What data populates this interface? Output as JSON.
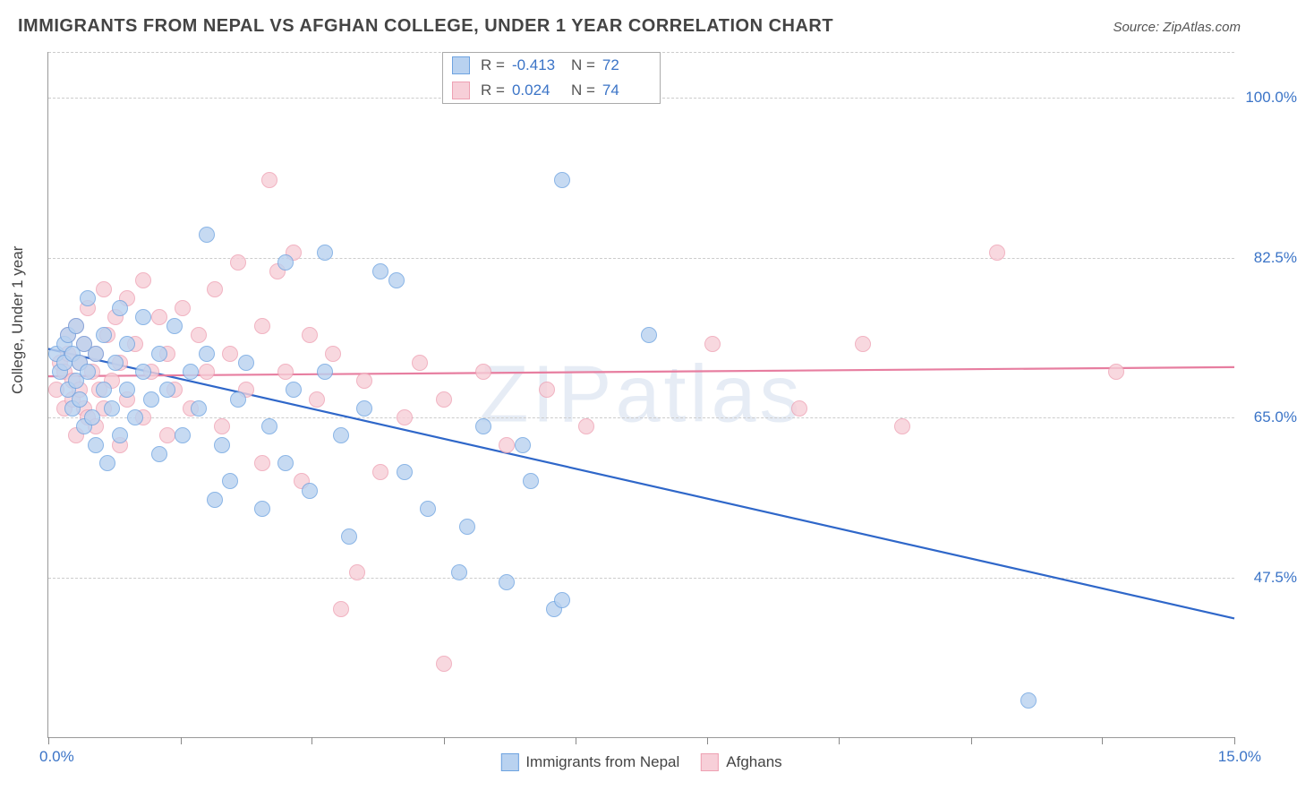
{
  "title": "IMMIGRANTS FROM NEPAL VS AFGHAN COLLEGE, UNDER 1 YEAR CORRELATION CHART",
  "source": "Source: ZipAtlas.com",
  "watermark": "ZIPatlas",
  "chart": {
    "type": "scatter",
    "xlim": [
      0,
      15
    ],
    "ylim": [
      30,
      105
    ],
    "x_tick_positions": [
      0,
      1.67,
      3.33,
      5.0,
      6.67,
      8.33,
      10.0,
      11.67,
      13.33,
      15.0
    ],
    "x_start_label": "0.0%",
    "x_end_label": "15.0%",
    "y_gridlines": [
      47.5,
      65.0,
      82.5,
      100.0,
      105.0
    ],
    "y_tick_labels": [
      "47.5%",
      "65.0%",
      "82.5%",
      "100.0%"
    ],
    "ylabel": "College, Under 1 year",
    "background_color": "#ffffff",
    "grid_color": "#cccccc",
    "axis_color": "#888888",
    "axis_label_color": "#3b74c7",
    "marker_radius": 9,
    "series": [
      {
        "name": "Immigrants from Nepal",
        "fill": "#b9d2f0",
        "stroke": "#6ea3e0",
        "r_value": "-0.413",
        "n_value": "72",
        "trend": {
          "y_at_x0": 72.5,
          "y_at_x15": 43.0,
          "color": "#2f67c9",
          "width": 2.2
        },
        "points": [
          [
            0.1,
            72
          ],
          [
            0.15,
            70
          ],
          [
            0.2,
            71
          ],
          [
            0.2,
            73
          ],
          [
            0.25,
            68
          ],
          [
            0.25,
            74
          ],
          [
            0.3,
            66
          ],
          [
            0.3,
            72
          ],
          [
            0.35,
            69
          ],
          [
            0.35,
            75
          ],
          [
            0.4,
            67
          ],
          [
            0.4,
            71
          ],
          [
            0.45,
            64
          ],
          [
            0.45,
            73
          ],
          [
            0.5,
            70
          ],
          [
            0.5,
            78
          ],
          [
            0.55,
            65
          ],
          [
            0.6,
            62
          ],
          [
            0.6,
            72
          ],
          [
            0.7,
            68
          ],
          [
            0.7,
            74
          ],
          [
            0.75,
            60
          ],
          [
            0.8,
            66
          ],
          [
            0.85,
            71
          ],
          [
            0.9,
            63
          ],
          [
            0.9,
            77
          ],
          [
            1.0,
            68
          ],
          [
            1.0,
            73
          ],
          [
            1.1,
            65
          ],
          [
            1.2,
            70
          ],
          [
            1.2,
            76
          ],
          [
            1.3,
            67
          ],
          [
            1.4,
            61
          ],
          [
            1.4,
            72
          ],
          [
            1.5,
            68
          ],
          [
            1.6,
            75
          ],
          [
            1.7,
            63
          ],
          [
            1.8,
            70
          ],
          [
            1.9,
            66
          ],
          [
            2.0,
            72
          ],
          [
            2.0,
            85
          ],
          [
            2.1,
            56
          ],
          [
            2.2,
            62
          ],
          [
            2.3,
            58
          ],
          [
            2.4,
            67
          ],
          [
            2.5,
            71
          ],
          [
            2.7,
            55
          ],
          [
            2.8,
            64
          ],
          [
            3.0,
            60
          ],
          [
            3.0,
            82
          ],
          [
            3.1,
            68
          ],
          [
            3.3,
            57
          ],
          [
            3.5,
            70
          ],
          [
            3.5,
            83
          ],
          [
            3.7,
            63
          ],
          [
            3.8,
            52
          ],
          [
            4.0,
            66
          ],
          [
            4.2,
            81
          ],
          [
            4.4,
            80
          ],
          [
            4.5,
            59
          ],
          [
            4.8,
            55
          ],
          [
            5.2,
            48
          ],
          [
            5.3,
            53
          ],
          [
            5.5,
            64
          ],
          [
            5.8,
            47
          ],
          [
            6.0,
            62
          ],
          [
            6.1,
            58
          ],
          [
            6.4,
            44
          ],
          [
            6.5,
            91
          ],
          [
            6.5,
            45
          ],
          [
            7.6,
            74
          ],
          [
            12.4,
            34
          ]
        ]
      },
      {
        "name": "Afghans",
        "fill": "#f7cfd8",
        "stroke": "#eea1b3",
        "r_value": "0.024",
        "n_value": "74",
        "trend": {
          "y_at_x0": 69.5,
          "y_at_x15": 70.5,
          "color": "#e77ea0",
          "width": 2.2
        },
        "points": [
          [
            0.1,
            68
          ],
          [
            0.15,
            71
          ],
          [
            0.2,
            70
          ],
          [
            0.2,
            66
          ],
          [
            0.25,
            72
          ],
          [
            0.25,
            74
          ],
          [
            0.3,
            67
          ],
          [
            0.3,
            69
          ],
          [
            0.35,
            75
          ],
          [
            0.35,
            63
          ],
          [
            0.4,
            71
          ],
          [
            0.4,
            68
          ],
          [
            0.45,
            73
          ],
          [
            0.45,
            66
          ],
          [
            0.5,
            77
          ],
          [
            0.5,
            65
          ],
          [
            0.55,
            70
          ],
          [
            0.6,
            72
          ],
          [
            0.6,
            64
          ],
          [
            0.65,
            68
          ],
          [
            0.7,
            79
          ],
          [
            0.7,
            66
          ],
          [
            0.75,
            74
          ],
          [
            0.8,
            69
          ],
          [
            0.85,
            76
          ],
          [
            0.9,
            62
          ],
          [
            0.9,
            71
          ],
          [
            1.0,
            78
          ],
          [
            1.0,
            67
          ],
          [
            1.1,
            73
          ],
          [
            1.2,
            65
          ],
          [
            1.2,
            80
          ],
          [
            1.3,
            70
          ],
          [
            1.4,
            76
          ],
          [
            1.5,
            63
          ],
          [
            1.5,
            72
          ],
          [
            1.6,
            68
          ],
          [
            1.7,
            77
          ],
          [
            1.8,
            66
          ],
          [
            1.9,
            74
          ],
          [
            2.0,
            70
          ],
          [
            2.1,
            79
          ],
          [
            2.2,
            64
          ],
          [
            2.3,
            72
          ],
          [
            2.4,
            82
          ],
          [
            2.5,
            68
          ],
          [
            2.7,
            60
          ],
          [
            2.7,
            75
          ],
          [
            2.8,
            91
          ],
          [
            2.9,
            81
          ],
          [
            3.0,
            70
          ],
          [
            3.1,
            83
          ],
          [
            3.2,
            58
          ],
          [
            3.3,
            74
          ],
          [
            3.4,
            67
          ],
          [
            3.6,
            72
          ],
          [
            3.7,
            44
          ],
          [
            3.9,
            48
          ],
          [
            4.0,
            69
          ],
          [
            4.2,
            59
          ],
          [
            4.5,
            65
          ],
          [
            4.7,
            71
          ],
          [
            5.0,
            38
          ],
          [
            5.0,
            67
          ],
          [
            5.5,
            70
          ],
          [
            5.8,
            62
          ],
          [
            6.3,
            68
          ],
          [
            6.8,
            64
          ],
          [
            8.4,
            73
          ],
          [
            9.5,
            66
          ],
          [
            10.3,
            73
          ],
          [
            10.8,
            64
          ],
          [
            12.0,
            83
          ],
          [
            13.5,
            70
          ]
        ]
      }
    ],
    "bottom_legend": [
      {
        "label": "Immigrants from Nepal",
        "fill": "#b9d2f0",
        "stroke": "#6ea3e0"
      },
      {
        "label": "Afghans",
        "fill": "#f7cfd8",
        "stroke": "#eea1b3"
      }
    ],
    "stat_legend_labels": {
      "r": "R =",
      "n": "N ="
    }
  }
}
